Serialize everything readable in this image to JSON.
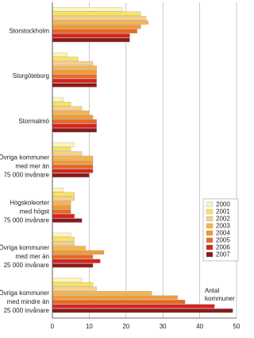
{
  "chart_data": {
    "type": "hbar",
    "categories": [
      [
        "Storstockholm"
      ],
      [
        "Storgöteborg"
      ],
      [
        "Stormalmö"
      ],
      [
        "Övriga kommuner",
        "med mer än",
        "75 000 invånare"
      ],
      [
        "Högskoleorter",
        "med högst",
        "75 000 invånare"
      ],
      [
        "Övriga kommuner",
        "med mer än",
        "25 000 invånare"
      ],
      [
        "Övriga kommuner",
        "med mindre än",
        "25 000 invånare"
      ]
    ],
    "series": [
      {
        "name": "2000",
        "color": "#fdf6b8",
        "values": [
          19,
          4,
          3,
          6,
          3,
          5,
          8
        ]
      },
      {
        "name": "2001",
        "color": "#fbe35c",
        "values": [
          24,
          7,
          5,
          5,
          6,
          6,
          11
        ]
      },
      {
        "name": "2002",
        "color": "#f8cf8c",
        "values": [
          25.5,
          11,
          8,
          8,
          6,
          6,
          12
        ]
      },
      {
        "name": "2003",
        "color": "#f5b54e",
        "values": [
          26,
          12,
          10,
          11,
          5,
          9,
          27
        ]
      },
      {
        "name": "2004",
        "color": "#f29a35",
        "values": [
          24,
          12,
          11,
          11,
          5,
          14,
          34
        ]
      },
      {
        "name": "2005",
        "color": "#e9691f",
        "values": [
          23,
          12,
          12,
          11,
          5,
          11,
          36
        ]
      },
      {
        "name": "2006",
        "color": "#d8241e",
        "values": [
          21,
          12,
          12,
          11,
          6,
          13,
          44
        ]
      },
      {
        "name": "2007",
        "color": "#8b1a1a",
        "values": [
          21,
          12,
          12,
          10,
          8,
          11,
          49
        ]
      }
    ],
    "xlim": [
      0,
      50
    ],
    "xticks": [
      0,
      10,
      20,
      30,
      40,
      50
    ],
    "xlabel": [
      "Antal",
      "kommuner"
    ],
    "grid": true,
    "legend": "right"
  }
}
